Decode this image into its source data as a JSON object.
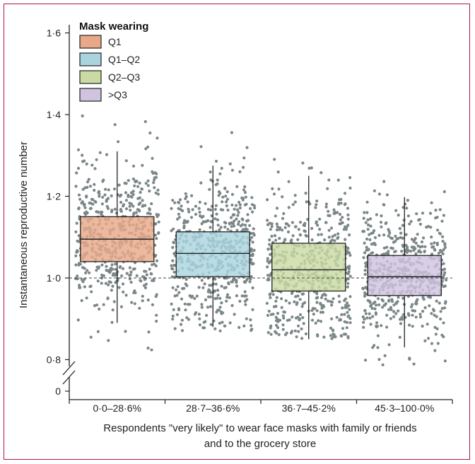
{
  "chart_data": {
    "type": "box",
    "ylabel": "Instantaneous reproductive number",
    "xlabel_line1": "Respondents \"very likely\" to wear face masks with family or friends",
    "xlabel_line2": "and to the grocery store",
    "y_ticks": [
      "1·6",
      "1·4",
      "1·2",
      "1·0",
      "0·8",
      "0"
    ],
    "y_tick_values": [
      1.6,
      1.4,
      1.2,
      1.0,
      0.8
    ],
    "ylim": [
      0.78,
      1.62
    ],
    "y_axis_break": true,
    "reference_line": 1.0,
    "legend": {
      "title": "Mask wearing",
      "placement": "top-left",
      "entries": [
        "Q1",
        "Q1–Q2",
        "Q2–Q3",
        ">Q3"
      ]
    },
    "categories": [
      "0·0–28·6%",
      "28·7–36·6%",
      "36·7–45·2%",
      "45·3–100·0%"
    ],
    "boxes": [
      {
        "name": "Q1",
        "color": "#e8a98a",
        "whisker_low": 0.89,
        "q1": 1.04,
        "median": 1.095,
        "q3": 1.15,
        "whisker_high": 1.31,
        "points_min": 0.81,
        "points_max": 1.4
      },
      {
        "name": "Q1–Q2",
        "color": "#a9d4df",
        "whisker_low": 0.88,
        "q1": 1.003,
        "median": 1.06,
        "q3": 1.113,
        "whisker_high": 1.275,
        "points_min": 0.87,
        "points_max": 1.4
      },
      {
        "name": "Q2–Q3",
        "color": "#c9dba3",
        "whisker_low": 0.85,
        "q1": 0.968,
        "median": 1.02,
        "q3": 1.085,
        "whisker_high": 1.25,
        "points_min": 0.85,
        "points_max": 1.395
      },
      {
        "name": ">Q3",
        "color": "#cfc3df",
        "whisker_low": 0.83,
        "q1": 0.957,
        "median": 1.003,
        "q3": 1.055,
        "whisker_high": 1.198,
        "points_min": 0.78,
        "points_max": 1.305
      }
    ],
    "point_color": "#7b8788"
  }
}
